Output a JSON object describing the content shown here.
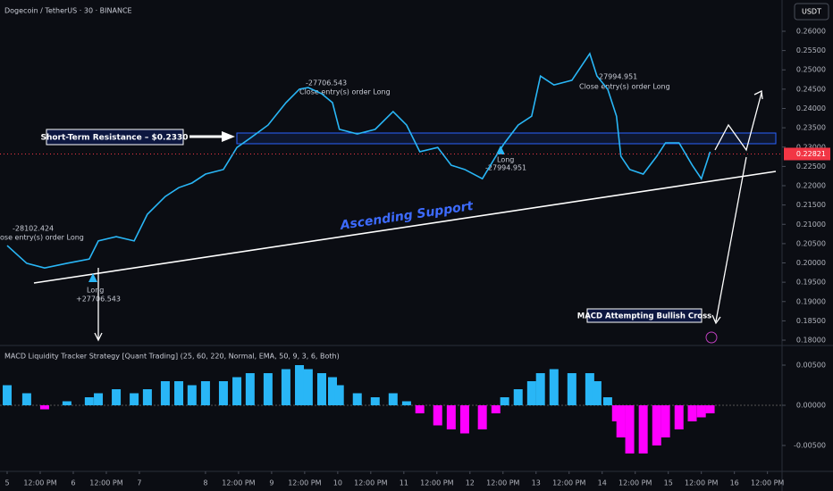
{
  "chart_data": [
    {
      "type": "line",
      "title": "Dogecoin / TetherUS · 30 · BINANCE",
      "currency": "USDT",
      "x": [
        0,
        7.1,
        13.6,
        21.7,
        29.8,
        33.1,
        39.6,
        46.1,
        50.9,
        57.4,
        62.3,
        67.1,
        72,
        78.5,
        83.4,
        88.2,
        94.7,
        101.2,
        106.1,
        109.3,
        114.2,
        118.1,
        120.6,
        127.1,
        133.6,
        140.1,
        145,
        149.8,
        156.3,
        161.2,
        166.1,
        172.5,
        177.4,
        180.6,
        185.5,
        190.4,
        193.6,
        198.5,
        205,
        211.5,
        214.1,
        218,
        221.2,
        222.8,
        226,
        230.9,
        235.8,
        239,
        243.9,
        248.7,
        252,
        255.2
      ],
      "series": [
        {
          "color": "#29b6f6",
          "values": [
            0.2045,
            0.1999,
            0.1987,
            0.1999,
            0.201,
            0.2057,
            0.2068,
            0.2057,
            0.2126,
            0.2172,
            0.2195,
            0.2207,
            0.223,
            0.2242,
            0.2299,
            0.2323,
            0.2357,
            0.2415,
            0.245,
            0.2454,
            0.2438,
            0.2415,
            0.2346,
            0.2334,
            0.2346,
            0.2392,
            0.2357,
            0.2288,
            0.2299,
            0.2253,
            0.2242,
            0.2218,
            0.2276,
            0.2311,
            0.2357,
            0.238,
            0.2484,
            0.2461,
            0.2473,
            0.2542,
            0.2484,
            0.245,
            0.238,
            0.2276,
            0.2242,
            0.223,
            0.2276,
            0.2311,
            0.2311,
            0.2253,
            0.2218,
            0.2288
          ]
        }
      ],
      "last_price": 0.22821,
      "xlim": [
        -2.6,
        281.3
      ],
      "ylim": [
        0.17908,
        0.26809
      ],
      "yticks": [
        {
          "value": 0.18,
          "label": "0.18000"
        },
        {
          "value": 0.185,
          "label": "0.18500"
        },
        {
          "value": 0.19,
          "label": "0.19000"
        },
        {
          "value": 0.195,
          "label": "0.19500"
        },
        {
          "value": 0.2,
          "label": "0.20000"
        },
        {
          "value": 0.205,
          "label": "0.20500"
        },
        {
          "value": 0.21,
          "label": "0.21000"
        },
        {
          "value": 0.215,
          "label": "0.21500"
        },
        {
          "value": 0.22,
          "label": "0.22000"
        },
        {
          "value": 0.225,
          "label": "0.22500"
        },
        {
          "value": 0.23,
          "label": "0.23000"
        },
        {
          "value": 0.235,
          "label": "0.23500"
        },
        {
          "value": 0.24,
          "label": "0.24000"
        },
        {
          "value": 0.245,
          "label": "0.24500"
        },
        {
          "value": 0.25,
          "label": "0.25000"
        },
        {
          "value": 0.255,
          "label": "0.25500"
        },
        {
          "value": 0.26,
          "label": "0.26000"
        }
      ],
      "annotations": {
        "resistance": "Short-Term Resistance – $0.2330",
        "support": "Ascending Support",
        "macd_note": "MACD Attempting Bullish Cross",
        "trades": [
          {
            "pnl": "-28102.424",
            "label": "ose entry(s) order Long"
          },
          {
            "pnl": "+27706.543",
            "label": "Long"
          },
          {
            "pnl": "-27706.543",
            "label": "Close entry(s) order Long"
          },
          {
            "pnl": "-27994.951",
            "label": "Long"
          },
          {
            "pnl": "27994.951",
            "label": "Close entry(s) order Long"
          }
        ]
      }
    },
    {
      "type": "histogram",
      "title": "MACD Liquidity Tracker Strategy [Quant Trading] (25, 60, 220, Normal, EMA, 50, 9, 3, 6, Both)",
      "x": [
        0,
        7.1,
        13.6,
        21.7,
        29.8,
        33.1,
        39.6,
        46.1,
        50.9,
        57.4,
        62.3,
        67.1,
        72,
        78.5,
        83.4,
        88.2,
        94.7,
        101.2,
        106.1,
        109.3,
        114.2,
        118.1,
        120.6,
        127.1,
        133.6,
        140.1,
        145,
        149.8,
        156.3,
        161.2,
        166.1,
        172.5,
        177.4,
        180.6,
        185.5,
        190.4,
        193.6,
        198.5,
        205,
        211.5,
        214.1,
        218,
        221.2,
        222.8,
        226,
        230.9,
        235.8,
        239,
        243.9,
        248.7,
        252,
        255.2
      ],
      "values": [
        0.0025,
        0.0015,
        -0.0005,
        0.0005,
        0.001,
        0.0015,
        0.002,
        0.0015,
        0.002,
        0.003,
        0.003,
        0.0025,
        0.003,
        0.003,
        0.0035,
        0.004,
        0.004,
        0.0045,
        0.005,
        0.0045,
        0.004,
        0.0035,
        0.0025,
        0.0015,
        0.001,
        0.0015,
        0.0005,
        -0.001,
        -0.0025,
        -0.003,
        -0.0035,
        -0.003,
        -0.001,
        0.001,
        0.002,
        0.003,
        0.004,
        0.0045,
        0.004,
        0.004,
        0.003,
        0.001,
        -0.002,
        -0.004,
        -0.006,
        -0.006,
        -0.005,
        -0.004,
        -0.003,
        -0.002,
        -0.0015,
        -0.001
      ],
      "colors": {
        "positive": "#29b6f6",
        "negative": "#ff00ff"
      },
      "xlim": [
        -2.6,
        281.3
      ],
      "ylim": [
        -0.00789,
        0.00711
      ],
      "yticks": [
        {
          "value": 0.005,
          "label": "0.00500"
        },
        {
          "value": 0,
          "label": "0.00000"
        },
        {
          "value": -0.005,
          "label": "-0.00500"
        }
      ],
      "xticks": [
        {
          "value": 0,
          "label": "5"
        },
        {
          "value": 12,
          "label": "12:00 PM"
        },
        {
          "value": 24,
          "label": "6"
        },
        {
          "value": 36,
          "label": "12:00 PM"
        },
        {
          "value": 48,
          "label": "7"
        },
        {
          "value": 72,
          "label": "8"
        },
        {
          "value": 84,
          "label": "12:00 PM"
        },
        {
          "value": 96,
          "label": "9"
        },
        {
          "value": 108,
          "label": "12:00 PM"
        },
        {
          "value": 120,
          "label": "10"
        },
        {
          "value": 132,
          "label": "12:00 PM"
        },
        {
          "value": 144,
          "label": "11"
        },
        {
          "value": 156,
          "label": "12:00 PM"
        },
        {
          "value": 168,
          "label": "12"
        },
        {
          "value": 180,
          "label": "12:00 PM"
        },
        {
          "value": 192,
          "label": "13"
        },
        {
          "value": 204,
          "label": "12:00 PM"
        },
        {
          "value": 216,
          "label": "14"
        },
        {
          "value": 228,
          "label": "12:00 PM"
        },
        {
          "value": 240,
          "label": "15"
        },
        {
          "value": 252,
          "label": "12:00 PM"
        },
        {
          "value": 264,
          "label": "16"
        },
        {
          "value": 276,
          "label": "12:00 PM"
        }
      ]
    }
  ]
}
